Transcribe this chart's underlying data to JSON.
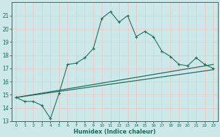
{
  "xlabel": "Humidex (Indice chaleur)",
  "bg_color": "#cce8e8",
  "grid_color": "#b0d8d8",
  "line_color": "#1a6b5a",
  "xlim": [
    -0.5,
    23.5
  ],
  "ylim": [
    13,
    22
  ],
  "yticks": [
    13,
    14,
    15,
    16,
    17,
    18,
    19,
    20,
    21
  ],
  "xticks": [
    0,
    1,
    2,
    3,
    4,
    5,
    6,
    7,
    8,
    9,
    10,
    11,
    12,
    13,
    14,
    15,
    16,
    17,
    18,
    19,
    20,
    21,
    22,
    23
  ],
  "curve1_x": [
    0,
    1,
    2,
    3,
    4,
    5,
    6,
    7,
    8,
    9,
    10,
    11,
    12,
    13,
    14,
    15,
    16,
    17,
    18,
    19,
    20,
    21,
    22,
    23
  ],
  "curve1_y": [
    14.8,
    14.5,
    14.5,
    14.2,
    13.2,
    15.1,
    17.3,
    17.4,
    17.8,
    18.5,
    20.8,
    21.3,
    20.5,
    21.0,
    19.4,
    19.8,
    19.4,
    18.3,
    17.9,
    17.3,
    17.2,
    17.8,
    17.3,
    17.0
  ],
  "curve2_x": [
    0,
    23
  ],
  "curve2_y": [
    14.8,
    16.9
  ],
  "curve3_x": [
    0,
    23
  ],
  "curve3_y": [
    14.8,
    17.3
  ]
}
